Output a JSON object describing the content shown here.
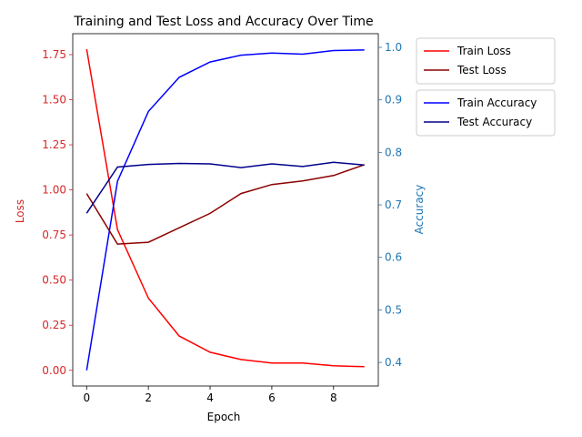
{
  "chart_data": {
    "type": "line",
    "title": "Training and Test Loss and Accuracy Over Time",
    "xlabel": "Epoch",
    "x": [
      0,
      1,
      2,
      3,
      4,
      5,
      6,
      7,
      8,
      9
    ],
    "xticks": [
      0,
      2,
      4,
      6,
      8
    ],
    "xlim": [
      -0.45,
      9.45
    ],
    "left_axis": {
      "label": "Loss",
      "color": "#d62728",
      "ylim": [
        -0.087,
        1.866
      ],
      "ticks": [
        0.0,
        0.25,
        0.5,
        0.75,
        1.0,
        1.25,
        1.5,
        1.75
      ],
      "tick_labels": [
        "0.00",
        "0.25",
        "0.50",
        "0.75",
        "1.00",
        "1.25",
        "1.50",
        "1.75"
      ]
    },
    "right_axis": {
      "label": "Accuracy",
      "color": "#1f77b4",
      "ylim": [
        0.355,
        1.026
      ],
      "ticks": [
        0.4,
        0.5,
        0.6,
        0.7,
        0.8,
        0.9,
        1.0
      ],
      "tick_labels": [
        "0.4",
        "0.5",
        "0.6",
        "0.7",
        "0.8",
        "0.9",
        "1.0"
      ]
    },
    "loss_series": [
      {
        "name": "Train Loss",
        "color": "#ff0000",
        "values": [
          1.78,
          0.78,
          0.4,
          0.19,
          0.1,
          0.06,
          0.04,
          0.04,
          0.025,
          0.02
        ]
      },
      {
        "name": "Test Loss",
        "color": "#8b0000",
        "values": [
          0.98,
          0.7,
          0.71,
          0.79,
          0.87,
          0.98,
          1.03,
          1.05,
          1.08,
          1.14
        ]
      }
    ],
    "accuracy_series": [
      {
        "name": "Train Accuracy",
        "color": "#0000ff",
        "values": [
          0.385,
          0.745,
          0.878,
          0.943,
          0.972,
          0.985,
          0.989,
          0.987,
          0.994,
          0.995
        ]
      },
      {
        "name": "Test Accuracy",
        "color": "#00008b",
        "values": [
          0.684,
          0.772,
          0.777,
          0.779,
          0.778,
          0.771,
          0.778,
          0.773,
          0.781,
          0.776
        ]
      }
    ],
    "legend_placement": "outside right, upper",
    "grid": false
  }
}
